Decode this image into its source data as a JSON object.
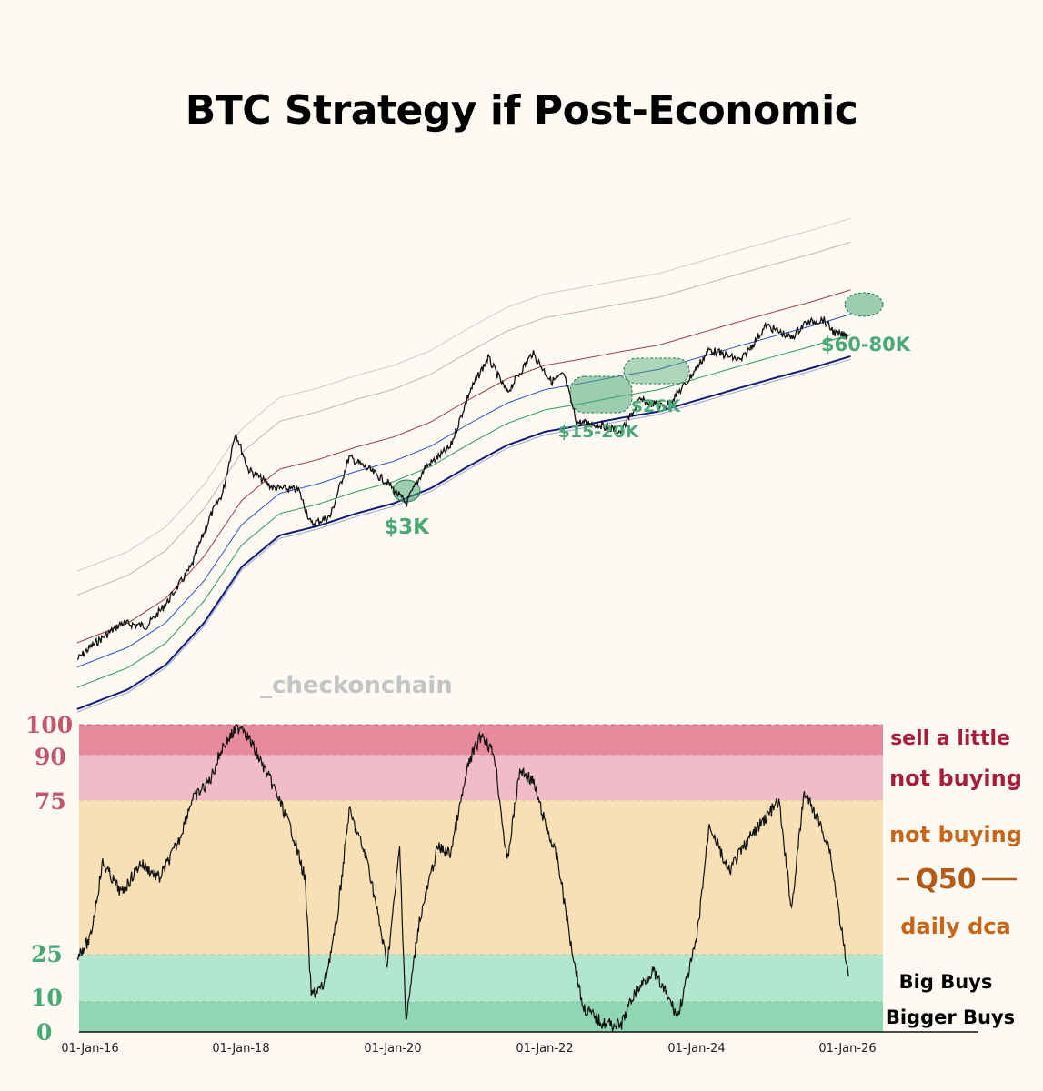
{
  "title": "BTC Strategy if Post-Economic",
  "watermark": "_checkonchain",
  "colors": {
    "background": "#fdfaf4",
    "price_line": "#111111",
    "band_red": "#a33b3b",
    "band_blue": "#2e4fc9",
    "band_green": "#2f9a55",
    "band_navy": "#131c78",
    "zone_sell": "#e68a9c",
    "zone_notbuy_pink": "#f0bcc8",
    "zone_notbuy_orange": "#f8dfb5",
    "zone_bigbuys": "#b3e6cf",
    "zone_biggerbuys": "#8fd6b2",
    "annotation": "#4aa874"
  },
  "annotations": {
    "a1": "$3K",
    "a2": "$15-20K",
    "a3": "$26K",
    "a4": "$60-80K"
  },
  "zones": {
    "sell": "sell a little",
    "notbuy1": "not buying",
    "notbuy2": "not buying",
    "q50": "Q50",
    "dca": "daily dca",
    "big": "Big Buys",
    "bigger": "Bigger Buys"
  },
  "chart_data": [
    {
      "type": "line",
      "title": "BTC Strategy if Post-Economic",
      "x_axis": "date",
      "y_scale": "log",
      "series": [
        {
          "name": "",
          "x": [
            "2015-11",
            "2016-01",
            "2016-06",
            "2016-10",
            "2017-01",
            "2017-05",
            "2017-08",
            "2017-10",
            "2017-12",
            "2018-02",
            "2018-06",
            "2018-10",
            "2018-12",
            "2019-03",
            "2019-06",
            "2019-09",
            "2019-12",
            "2020-03",
            "2020-06",
            "2020-10",
            "2021-01",
            "2021-04",
            "2021-07",
            "2021-11",
            "2022-02",
            "2022-04",
            "2022-06",
            "2022-10",
            "2023-01",
            "2023-04",
            "2023-08",
            "2023-11",
            "2024-03",
            "2024-08",
            "2024-12",
            "2025-04",
            "2025-06",
            "2025-09",
            "2025-11",
            "2026-01"
          ],
          "values": [
            350,
            430,
            650,
            620,
            900,
            1700,
            4000,
            6000,
            17000,
            9000,
            6500,
            6300,
            3500,
            4000,
            11000,
            9000,
            7200,
            5000,
            9200,
            13000,
            33000,
            60000,
            33000,
            65000,
            40000,
            45000,
            20000,
            19000,
            17000,
            29000,
            26000,
            37000,
            69000,
            57000,
            104000,
            84000,
            107000,
            115000,
            90000,
            87000
          ]
        }
      ],
      "band_guides": [
        "red",
        "blue",
        "green",
        "navy",
        "grey-upper-1",
        "grey-upper-2"
      ]
    },
    {
      "type": "line",
      "x_axis": "date",
      "ylim": [
        0,
        100
      ],
      "y_ticks": [
        100,
        90,
        75,
        25,
        10,
        0
      ],
      "x_ticks": [
        "01-Jan-16",
        "01-Jan-18",
        "01-Jan-20",
        "01-Jan-22",
        "01-Jan-24",
        "01-Jan-26"
      ],
      "x_tick_dates": [
        "2016-01",
        "2018-01",
        "2020-01",
        "2022-01",
        "2024-01",
        "2026-01"
      ],
      "series": [
        {
          "name": "",
          "x": [
            "2015-11",
            "2016-01",
            "2016-03",
            "2016-06",
            "2016-09",
            "2016-12",
            "2017-03",
            "2017-05",
            "2017-08",
            "2017-10",
            "2017-12",
            "2018-01",
            "2018-03",
            "2018-06",
            "2018-09",
            "2018-11",
            "2018-12",
            "2019-02",
            "2019-04",
            "2019-06",
            "2019-09",
            "2019-12",
            "2020-01",
            "2020-02",
            "2020-03",
            "2020-05",
            "2020-08",
            "2020-10",
            "2021-01",
            "2021-03",
            "2021-05",
            "2021-07",
            "2021-09",
            "2021-11",
            "2022-01",
            "2022-03",
            "2022-05",
            "2022-07",
            "2022-10",
            "2023-01",
            "2023-03",
            "2023-06",
            "2023-08",
            "2023-10",
            "2024-01",
            "2024-03",
            "2024-06",
            "2024-09",
            "2024-12",
            "2025-02",
            "2025-04",
            "2025-06",
            "2025-08",
            "2025-10",
            "2025-12",
            "2026-01"
          ],
          "values": [
            25,
            30,
            55,
            45,
            55,
            50,
            62,
            75,
            82,
            93,
            98,
            100,
            92,
            80,
            65,
            50,
            12,
            15,
            35,
            72,
            55,
            22,
            40,
            60,
            3,
            35,
            60,
            58,
            88,
            97,
            90,
            55,
            85,
            82,
            68,
            56,
            30,
            8,
            3,
            2,
            12,
            20,
            13,
            5,
            30,
            68,
            52,
            62,
            70,
            75,
            40,
            78,
            70,
            60,
            32,
            18
          ]
        }
      ]
    }
  ]
}
